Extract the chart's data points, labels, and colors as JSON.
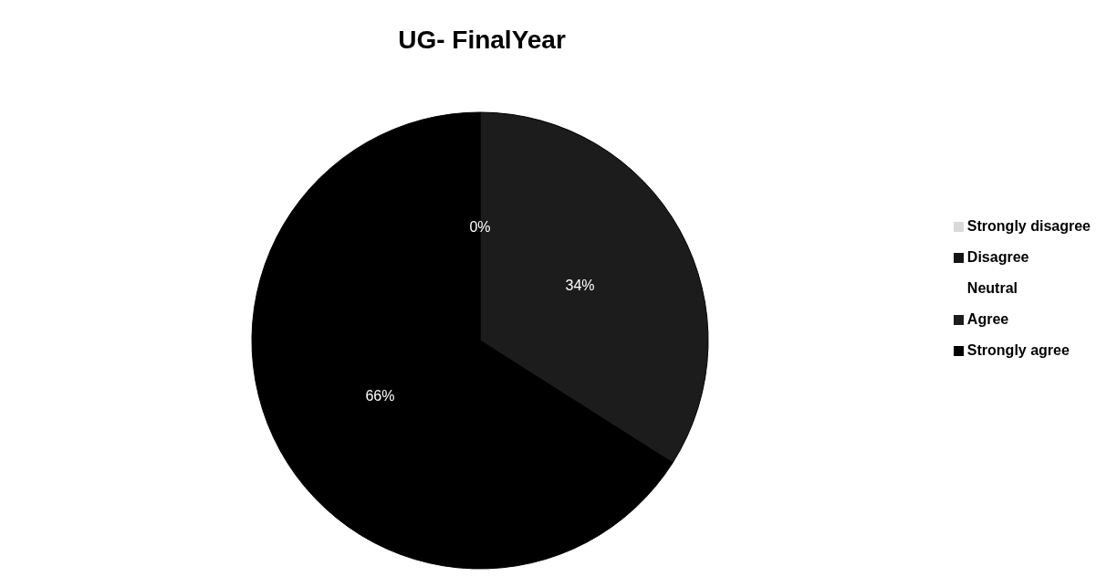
{
  "chart_data": {
    "type": "pie",
    "title": "UG- FinalYear",
    "categories": [
      "Strongly disagree",
      "Disagree",
      "Neutral",
      "Agree",
      "Strongly agree"
    ],
    "values": [
      0,
      0,
      0,
      34,
      66
    ],
    "colors": [
      "#d9d9d9",
      "#141414",
      "#ffffff",
      "#1c1c1c",
      "#000000"
    ],
    "value_labels": [
      null,
      null,
      "0%",
      "34%",
      "66%"
    ],
    "legend": "right"
  }
}
